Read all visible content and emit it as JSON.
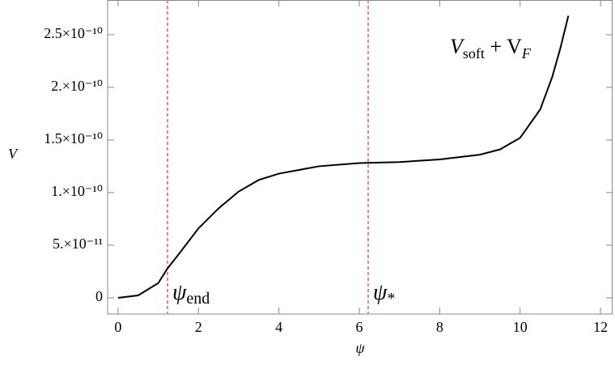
{
  "chart_data": {
    "type": "line",
    "x": [
      0,
      0.5,
      1,
      1.23,
      1.5,
      2,
      2.5,
      3,
      3.5,
      4,
      5,
      6,
      7,
      8,
      9,
      9.5,
      10,
      10.5,
      10.8,
      11,
      11.2
    ],
    "values": [
      0,
      2.3e-12,
      1.4e-11,
      2.8e-11,
      4.1e-11,
      6.6e-11,
      8.5e-11,
      1.01e-10,
      1.12e-10,
      1.18e-10,
      1.25e-10,
      1.28e-10,
      1.29e-10,
      1.315e-10,
      1.36e-10,
      1.41e-10,
      1.52e-10,
      1.79e-10,
      2.1e-10,
      2.37e-10,
      2.68e-10
    ],
    "color": "#000000",
    "xlabel": "ψ",
    "ylabel": "V",
    "xlim": [
      -0.26,
      12.3
    ],
    "ylim": [
      -1.54e-11,
      2.83e-10
    ],
    "xticks": [
      0,
      2,
      4,
      6,
      8,
      10,
      12
    ],
    "yticks": [
      0,
      {
        "value": 5e-11,
        "label": "5.×10⁻¹¹"
      },
      {
        "value": 1e-10,
        "label": "1.×10⁻¹⁰"
      },
      {
        "value": 1.5e-10,
        "label": "1.5×10⁻¹⁰"
      },
      {
        "value": 2e-10,
        "label": "2.×10⁻¹⁰"
      },
      {
        "value": 2.5e-10,
        "label": "2.5×10⁻¹⁰"
      }
    ],
    "vlines": [
      {
        "x": 1.23,
        "symbol": "ψ",
        "subscript": "end",
        "color": "#f08080"
      },
      {
        "x": 6.22,
        "symbol": "ψ",
        "subscript": "*",
        "color": "#f08080"
      }
    ],
    "annotation": {
      "v1": "V",
      "sub1": "soft",
      "mid": " + V",
      "sub2": "F"
    }
  }
}
